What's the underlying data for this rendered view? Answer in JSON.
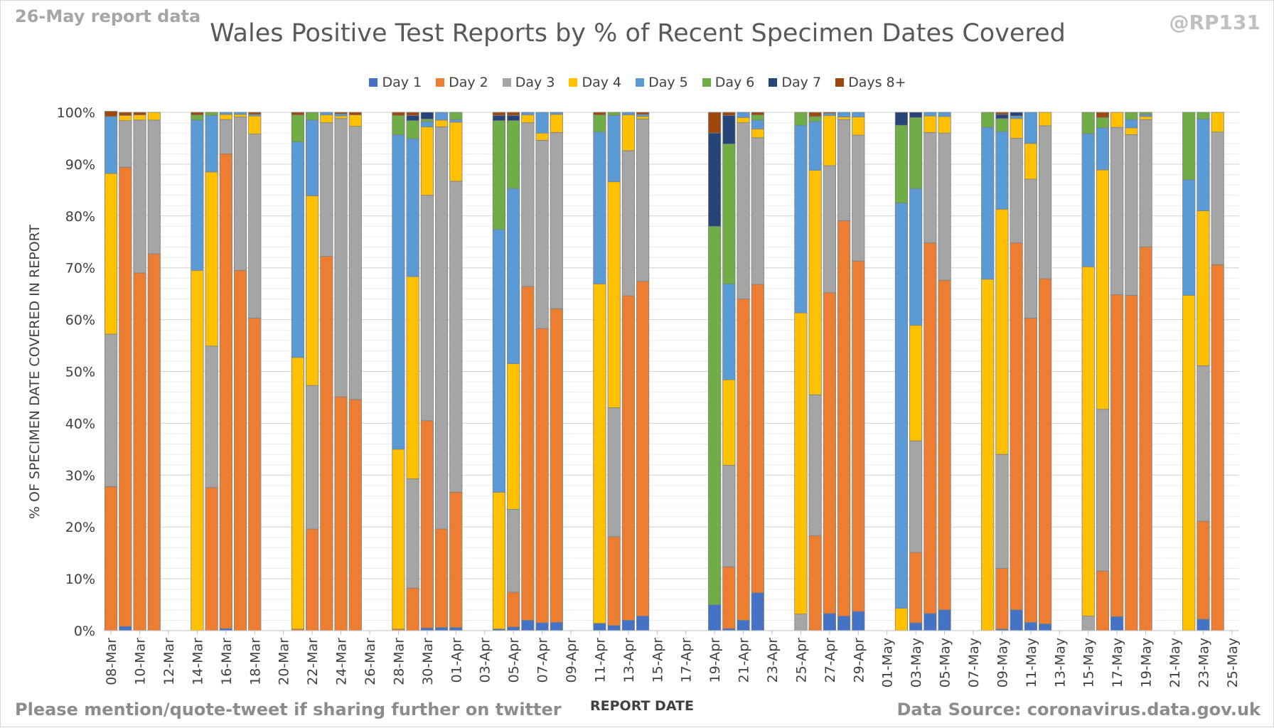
{
  "header": {
    "report_date_tag": "26-May report data",
    "handle": "@RP131"
  },
  "footer": {
    "note": "Please mention/quote-tweet if sharing further on twitter",
    "source": "Data Source: coronavirus.data.gov.uk"
  },
  "colors": {
    "Day 1": "#4472c4",
    "Day 2": "#ed7d31",
    "Day 3": "#a5a5a5",
    "Day 4": "#ffc000",
    "Day 5": "#5b9bd5",
    "Day 6": "#70ad47",
    "Day 7": "#264478",
    "Days 8+": "#9e480e"
  },
  "chart_data": {
    "type": "bar",
    "stacked": true,
    "title": "Wales Positive Test Reports by % of Recent Specimen Dates Covered",
    "xlabel": "REPORT DATE",
    "ylabel": "% OF SPECIMEN DATE COVERED IN REPORT",
    "ylim": [
      0,
      100
    ],
    "ytick_labels": [
      "0%",
      "10%",
      "20%",
      "30%",
      "40%",
      "50%",
      "60%",
      "70%",
      "80%",
      "90%",
      "100%"
    ],
    "grid": true,
    "legend": "top",
    "x_tick_labels": [
      "08-Mar",
      "10-Mar",
      "12-Mar",
      "14-Mar",
      "16-Mar",
      "18-Mar",
      "20-Mar",
      "22-Mar",
      "24-Mar",
      "26-Mar",
      "28-Mar",
      "30-Mar",
      "01-Apr",
      "03-Apr",
      "05-Apr",
      "07-Apr",
      "09-Apr",
      "11-Apr",
      "13-Apr",
      "15-Apr",
      "17-Apr",
      "19-Apr",
      "21-Apr",
      "23-Apr",
      "25-Apr",
      "27-Apr",
      "29-Apr",
      "01-May",
      "03-May",
      "05-May",
      "07-May",
      "09-May",
      "11-May",
      "13-May",
      "15-May",
      "17-May",
      "19-May",
      "21-May",
      "23-May",
      "25-May"
    ],
    "series_names": [
      "Day 1",
      "Day 2",
      "Day 3",
      "Day 4",
      "Day 5",
      "Day 6",
      "Day 7",
      "Days 8+"
    ],
    "categories": [
      "08-Mar",
      "09-Mar",
      "10-Mar",
      "11-Mar",
      "12-Mar",
      "13-Mar",
      "14-Mar",
      "15-Mar",
      "16-Mar",
      "17-Mar",
      "18-Mar",
      "19-Mar",
      "20-Mar",
      "21-Mar",
      "22-Mar",
      "23-Mar",
      "24-Mar",
      "25-Mar",
      "26-Mar",
      "27-Mar",
      "28-Mar",
      "29-Mar",
      "30-Mar",
      "31-Mar",
      "01-Apr",
      "02-Apr",
      "03-Apr",
      "04-Apr",
      "05-Apr",
      "06-Apr",
      "07-Apr",
      "08-Apr",
      "09-Apr",
      "10-Apr",
      "11-Apr",
      "12-Apr",
      "13-Apr",
      "14-Apr",
      "15-Apr",
      "16-Apr",
      "17-Apr",
      "18-Apr",
      "19-Apr",
      "20-Apr",
      "21-Apr",
      "22-Apr",
      "23-Apr",
      "24-Apr",
      "25-Apr",
      "26-Apr",
      "27-Apr",
      "28-Apr",
      "29-Apr",
      "30-Apr",
      "01-May",
      "02-May",
      "03-May",
      "04-May",
      "05-May",
      "06-May",
      "07-May",
      "08-May",
      "09-May",
      "10-May",
      "11-May",
      "12-May",
      "13-May",
      "14-May",
      "15-May",
      "16-May",
      "17-May",
      "18-May",
      "19-May",
      "20-May",
      "21-May",
      "22-May",
      "23-May",
      "24-May",
      "25-May"
    ],
    "stacks": [
      [
        0,
        27.8,
        29.4,
        31.0,
        11.0,
        0,
        0,
        1.0
      ],
      [
        0.8,
        88.6,
        9.0,
        1.0,
        0,
        0,
        0,
        0.6
      ],
      [
        0,
        69.0,
        29.5,
        1.0,
        0,
        0,
        0,
        0.5
      ],
      [
        0,
        72.7,
        25.8,
        1.5,
        0,
        0,
        0,
        0
      ],
      null,
      null,
      [
        0,
        0,
        0,
        69.5,
        29.0,
        1.0,
        0,
        0.5
      ],
      [
        0,
        27.6,
        27.3,
        33.6,
        10.9,
        0.6,
        0,
        0
      ],
      [
        0.4,
        91.6,
        6.6,
        1.0,
        0.4,
        0,
        0,
        0
      ],
      [
        0,
        69.5,
        29.6,
        0.5,
        0.4,
        0,
        0,
        0
      ],
      [
        0,
        60.3,
        35.5,
        3.5,
        0.3,
        0,
        0,
        0.4
      ],
      null,
      null,
      [
        0,
        0.3,
        0,
        52.4,
        41.6,
        5.2,
        0,
        0.5
      ],
      [
        0,
        19.6,
        27.7,
        36.6,
        14.6,
        1.5,
        0,
        0
      ],
      [
        0,
        72.2,
        25.8,
        1.5,
        0.5,
        0,
        0,
        0
      ],
      [
        0,
        45.1,
        53.7,
        0.5,
        0.4,
        0,
        0,
        0.3
      ],
      [
        0,
        44.6,
        52.7,
        2.2,
        0,
        0,
        0,
        0.5
      ],
      null,
      null,
      [
        0,
        0.3,
        0,
        34.7,
        60.7,
        3.7,
        0,
        0.6
      ],
      [
        0,
        8.2,
        21.1,
        39.0,
        26.6,
        3.5,
        1.0,
        0.6
      ],
      [
        0.5,
        40.0,
        43.5,
        13.2,
        1.0,
        0.5,
        1.3,
        0
      ],
      [
        0.6,
        19.0,
        77.6,
        1.3,
        1.5,
        0,
        0,
        0
      ],
      [
        0.6,
        26.1,
        60.0,
        11.4,
        0.5,
        1.4,
        0,
        0
      ],
      null,
      null,
      [
        0.3,
        0,
        0,
        26.4,
        50.7,
        21.0,
        1.0,
        0.6
      ],
      [
        0.7,
        6.7,
        16.0,
        28.1,
        33.8,
        13.1,
        1.0,
        0.6
      ],
      [
        2.0,
        64.4,
        31.6,
        1.5,
        0.5,
        0,
        0,
        0
      ],
      [
        1.5,
        56.8,
        36.3,
        1.4,
        4.0,
        0,
        0,
        0
      ],
      [
        1.6,
        60.5,
        34.0,
        3.5,
        0.4,
        0,
        0,
        0
      ],
      null,
      null,
      [
        1.4,
        0,
        0,
        65.5,
        29.3,
        3.3,
        0,
        0.5
      ],
      [
        1.0,
        17.1,
        24.9,
        43.6,
        12.8,
        0.6,
        0,
        0
      ],
      [
        2.0,
        62.6,
        28.0,
        6.9,
        0.5,
        0,
        0,
        0
      ],
      [
        2.8,
        64.6,
        31.3,
        0.5,
        0.4,
        0,
        0,
        0.4
      ],
      null,
      null,
      null,
      null,
      [
        5.0,
        0,
        0,
        0,
        0,
        73.0,
        18.0,
        4.0
      ],
      [
        0.4,
        11.9,
        19.6,
        16.5,
        18.5,
        27.0,
        5.5,
        0.6
      ],
      [
        2.0,
        62.0,
        34.0,
        1.0,
        1.0,
        0,
        0,
        0
      ],
      [
        7.3,
        59.5,
        28.3,
        1.7,
        1.7,
        1.0,
        0,
        0.5
      ],
      null,
      null,
      [
        0,
        0,
        3.2,
        58.1,
        36.2,
        2.5,
        0,
        0
      ],
      [
        0,
        18.3,
        27.2,
        43.3,
        9.4,
        1.0,
        0,
        0.8
      ],
      [
        3.3,
        61.9,
        24.5,
        9.7,
        0.4,
        0,
        0,
        0.2
      ],
      [
        2.8,
        76.3,
        19.5,
        0.5,
        0.9,
        0,
        0,
        0
      ],
      [
        3.7,
        67.6,
        24.3,
        3.5,
        0.9,
        0,
        0,
        0
      ],
      null,
      null,
      [
        0,
        0,
        0,
        4.3,
        78.2,
        15.0,
        2.5,
        0
      ],
      [
        1.5,
        13.6,
        21.5,
        22.3,
        26.4,
        13.7,
        1.0,
        0
      ],
      [
        3.3,
        71.5,
        21.3,
        3.2,
        0.7,
        0,
        0,
        0
      ],
      [
        4.0,
        63.6,
        28.4,
        3.2,
        0.8,
        0,
        0,
        0
      ],
      null,
      null,
      [
        0,
        0,
        0,
        67.8,
        29.3,
        2.9,
        0,
        0
      ],
      [
        0.3,
        11.7,
        22.0,
        47.3,
        15.0,
        2.5,
        0.8,
        0.4
      ],
      [
        4.0,
        70.8,
        20.2,
        3.8,
        0.5,
        0,
        0.7,
        0
      ],
      [
        1.6,
        58.7,
        26.8,
        6.9,
        6.0,
        0,
        0,
        0
      ],
      [
        1.3,
        66.6,
        29.5,
        2.6,
        0,
        0,
        0,
        0
      ],
      null,
      null,
      [
        0,
        0,
        2.8,
        67.4,
        25.7,
        4.1,
        0,
        0
      ],
      [
        0,
        11.5,
        31.2,
        46.2,
        8.1,
        2.0,
        0,
        1.0
      ],
      [
        2.7,
        62.1,
        32.3,
        2.9,
        0,
        0,
        0,
        0
      ],
      [
        0,
        64.7,
        31.0,
        1.3,
        1.6,
        1.4,
        0,
        0
      ],
      [
        0,
        74.0,
        24.6,
        0.6,
        0.4,
        0.4,
        0,
        0
      ],
      null,
      null,
      [
        0,
        0,
        0,
        64.7,
        22.3,
        13.0,
        0,
        0
      ],
      [
        2.2,
        18.9,
        30.0,
        29.9,
        17.7,
        1.3,
        0,
        0
      ],
      [
        0,
        70.6,
        25.6,
        3.8,
        0,
        0,
        0,
        0
      ]
    ]
  }
}
